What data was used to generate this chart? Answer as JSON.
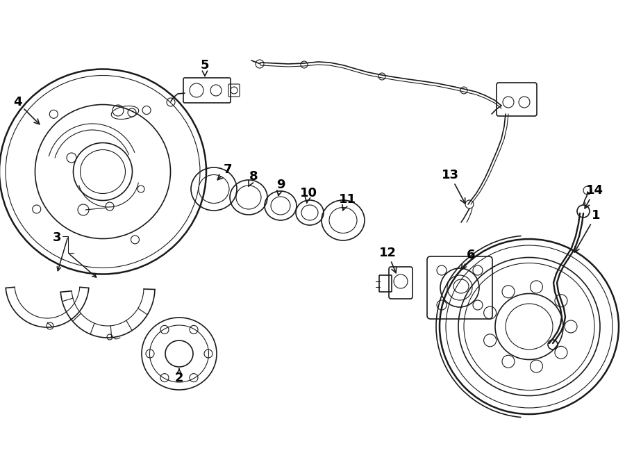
{
  "bg_color": "#ffffff",
  "lc": "#1a1a1a",
  "lw1": 1.8,
  "lw2": 1.2,
  "lw3": 0.8,
  "fs": 13
}
